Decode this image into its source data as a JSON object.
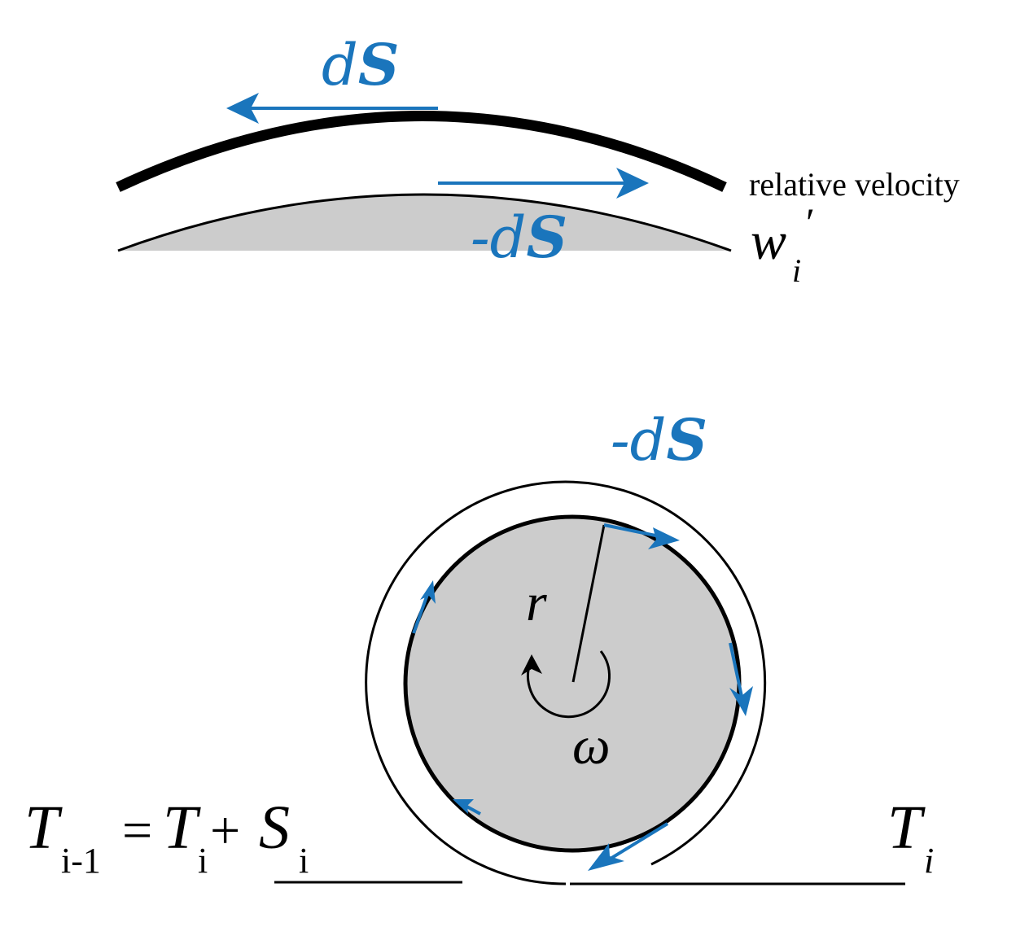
{
  "colors": {
    "accent": "#1a75bc",
    "ink": "#000000",
    "fill": "#cccccc"
  },
  "top": {
    "ds_d": "d",
    "ds_s": "S",
    "neg_prefix": "-",
    "neg_d": "d",
    "neg_s": "S",
    "relative_velocity": "relative velocity",
    "w": "w",
    "w_sub": "i",
    "w_prime": "′"
  },
  "bottom": {
    "neg_prefix": "-",
    "neg_d": "d",
    "neg_s": "S",
    "r": "r",
    "omega": "ω",
    "left_eq": {
      "T1": "T",
      "T1_sub": "i-1",
      "eq": "=",
      "T2": "T",
      "T2_sub": "i",
      "plus": "+",
      "S": "S",
      "S_sub": "i"
    },
    "right_T": "T",
    "right_T_sub": "i"
  }
}
